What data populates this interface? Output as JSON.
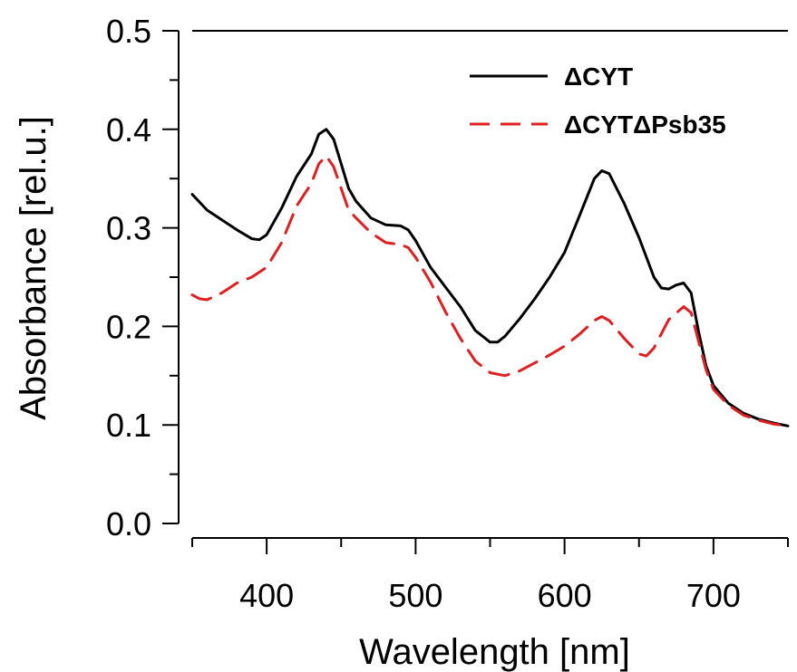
{
  "chart_data": {
    "type": "line",
    "title": "",
    "xlabel": "Wavelength [nm]",
    "ylabel": "Absorbance [rel.u.]",
    "xlim": [
      350,
      750
    ],
    "ylim": [
      0.0,
      0.5
    ],
    "x_ticks": [
      400,
      500,
      600,
      700
    ],
    "x_tick_labels": [
      "400",
      "500",
      "600",
      "700"
    ],
    "x_minor_ticks": [
      350,
      450,
      550,
      650,
      750
    ],
    "y_ticks": [
      0.0,
      0.1,
      0.2,
      0.3,
      0.4,
      0.5
    ],
    "y_tick_labels": [
      "0.0",
      "0.1",
      "0.2",
      "0.3",
      "0.4",
      "0.5"
    ],
    "y_minor_ticks": [
      0.05,
      0.15,
      0.25,
      0.35,
      0.45
    ],
    "grid": false,
    "legend_position": "top-right",
    "series": [
      {
        "name": "ΔCYT",
        "color": "#000000",
        "dash": "solid",
        "points": [
          [
            350,
            0.334
          ],
          [
            360,
            0.318
          ],
          [
            370,
            0.308
          ],
          [
            380,
            0.298
          ],
          [
            390,
            0.289
          ],
          [
            395,
            0.288
          ],
          [
            400,
            0.293
          ],
          [
            410,
            0.32
          ],
          [
            420,
            0.352
          ],
          [
            430,
            0.375
          ],
          [
            435,
            0.395
          ],
          [
            440,
            0.4
          ],
          [
            445,
            0.39
          ],
          [
            450,
            0.365
          ],
          [
            455,
            0.34
          ],
          [
            460,
            0.327
          ],
          [
            470,
            0.31
          ],
          [
            480,
            0.303
          ],
          [
            490,
            0.302
          ],
          [
            495,
            0.298
          ],
          [
            500,
            0.287
          ],
          [
            510,
            0.26
          ],
          [
            520,
            0.24
          ],
          [
            530,
            0.22
          ],
          [
            540,
            0.196
          ],
          [
            550,
            0.184
          ],
          [
            555,
            0.184
          ],
          [
            560,
            0.19
          ],
          [
            570,
            0.208
          ],
          [
            580,
            0.228
          ],
          [
            590,
            0.25
          ],
          [
            600,
            0.275
          ],
          [
            610,
            0.312
          ],
          [
            620,
            0.35
          ],
          [
            625,
            0.358
          ],
          [
            630,
            0.355
          ],
          [
            640,
            0.325
          ],
          [
            650,
            0.29
          ],
          [
            660,
            0.25
          ],
          [
            665,
            0.239
          ],
          [
            670,
            0.238
          ],
          [
            675,
            0.242
          ],
          [
            680,
            0.244
          ],
          [
            685,
            0.234
          ],
          [
            690,
            0.195
          ],
          [
            695,
            0.16
          ],
          [
            700,
            0.14
          ],
          [
            710,
            0.122
          ],
          [
            720,
            0.112
          ],
          [
            730,
            0.106
          ],
          [
            740,
            0.102
          ],
          [
            750,
            0.099
          ]
        ]
      },
      {
        "name": "ΔCYTΔPsb35",
        "color": "#e02020",
        "dash": "dashed",
        "points": [
          [
            350,
            0.232
          ],
          [
            355,
            0.228
          ],
          [
            360,
            0.227
          ],
          [
            370,
            0.234
          ],
          [
            380,
            0.244
          ],
          [
            390,
            0.25
          ],
          [
            400,
            0.26
          ],
          [
            410,
            0.285
          ],
          [
            420,
            0.322
          ],
          [
            430,
            0.345
          ],
          [
            435,
            0.365
          ],
          [
            440,
            0.373
          ],
          [
            445,
            0.362
          ],
          [
            450,
            0.34
          ],
          [
            455,
            0.318
          ],
          [
            460,
            0.31
          ],
          [
            470,
            0.295
          ],
          [
            480,
            0.285
          ],
          [
            490,
            0.283
          ],
          [
            495,
            0.28
          ],
          [
            500,
            0.27
          ],
          [
            510,
            0.245
          ],
          [
            520,
            0.215
          ],
          [
            530,
            0.188
          ],
          [
            540,
            0.165
          ],
          [
            550,
            0.153
          ],
          [
            560,
            0.15
          ],
          [
            570,
            0.155
          ],
          [
            580,
            0.163
          ],
          [
            590,
            0.171
          ],
          [
            600,
            0.18
          ],
          [
            610,
            0.192
          ],
          [
            620,
            0.206
          ],
          [
            625,
            0.21
          ],
          [
            630,
            0.206
          ],
          [
            640,
            0.188
          ],
          [
            650,
            0.172
          ],
          [
            655,
            0.17
          ],
          [
            660,
            0.178
          ],
          [
            670,
            0.207
          ],
          [
            680,
            0.22
          ],
          [
            685,
            0.214
          ],
          [
            690,
            0.185
          ],
          [
            695,
            0.156
          ],
          [
            700,
            0.136
          ],
          [
            710,
            0.12
          ],
          [
            720,
            0.11
          ],
          [
            730,
            0.105
          ],
          [
            740,
            0.101
          ],
          [
            750,
            0.099
          ]
        ]
      }
    ]
  }
}
